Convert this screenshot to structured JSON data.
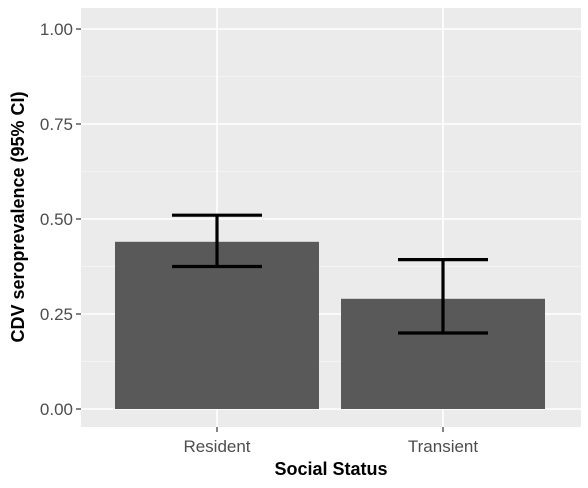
{
  "chart_data": {
    "type": "bar",
    "title": "",
    "xlabel": "Social Status",
    "ylabel": "CDV seroprevalence (95% CI)",
    "categories": [
      "Resident",
      "Transient"
    ],
    "values": [
      0.44,
      0.29
    ],
    "error_bars": [
      {
        "lower": 0.375,
        "upper": 0.51
      },
      {
        "lower": 0.2,
        "upper": 0.393
      }
    ],
    "ylim": [
      0,
      1.05
    ],
    "yticks": [
      0,
      0.25,
      0.5,
      0.75,
      1.0
    ],
    "ytick_labels": [
      "0.00",
      "0.25",
      "0.50",
      "0.75",
      "1.00"
    ],
    "grid": true,
    "legend": "none",
    "colors": {
      "panel_background": "#ebebeb",
      "grid_major": "#ffffff",
      "bar_fill": "#595959",
      "error_bar": "#000000",
      "tick_text": "#4d4d4d",
      "axis_title": "#000000"
    }
  }
}
